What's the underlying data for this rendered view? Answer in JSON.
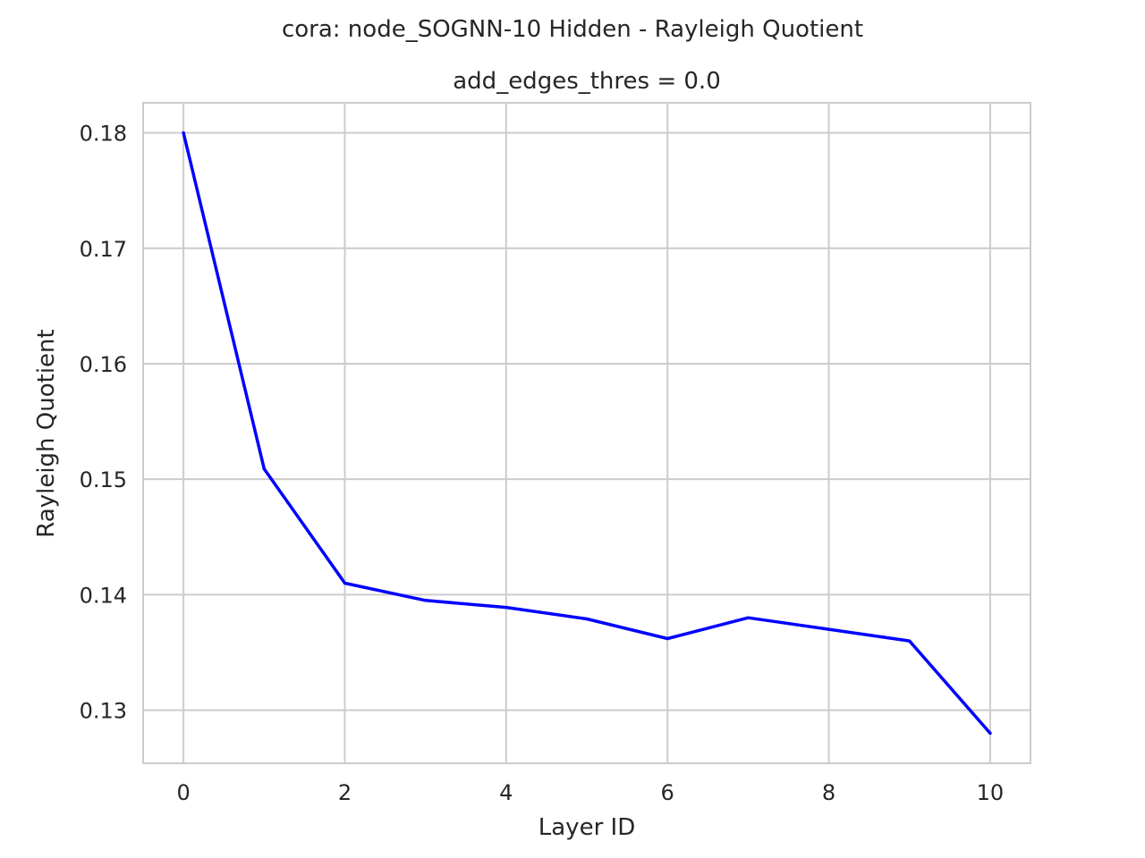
{
  "chart_data": {
    "type": "line",
    "title": "cora: node_SOGNN-10 Hidden - Rayleigh Quotient",
    "subtitle": "add_edges_thres = 0.0",
    "xlabel": "Layer ID",
    "ylabel": "Rayleigh Quotient",
    "xlim": [
      -0.5,
      10.5
    ],
    "ylim": [
      0.1254,
      0.1826
    ],
    "xticks": [
      0,
      2,
      4,
      6,
      8,
      10
    ],
    "yticks": [
      0.13,
      0.14,
      0.15,
      0.16,
      0.17,
      0.18
    ],
    "xtick_labels": [
      "0",
      "2",
      "4",
      "6",
      "8",
      "10"
    ],
    "ytick_labels": [
      "0.13",
      "0.14",
      "0.15",
      "0.16",
      "0.17",
      "0.18"
    ],
    "grid": true,
    "series": [
      {
        "color": "#0000ff",
        "x": [
          0,
          1,
          2,
          3,
          4,
          5,
          6,
          7,
          8,
          9,
          10
        ],
        "y": [
          0.18,
          0.1509,
          0.141,
          0.1395,
          0.1389,
          0.1379,
          0.1362,
          0.138,
          0.137,
          0.136,
          0.128
        ]
      }
    ]
  }
}
